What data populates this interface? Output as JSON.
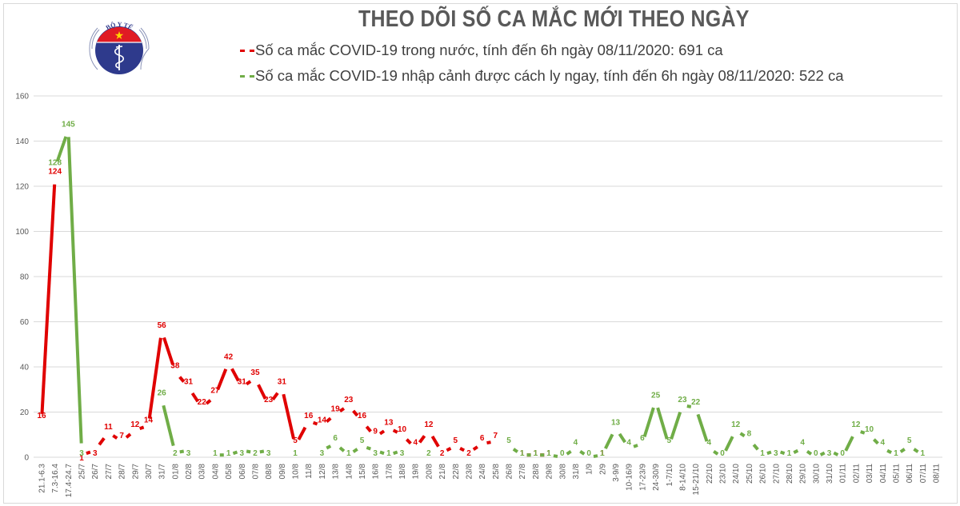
{
  "header": {
    "title": "THEO DÕI SỐ CA MẮC MỚI THEO NGÀY",
    "logo": {
      "top_text": "BỘ Y TẾ",
      "bottom_text": "MINISTRY OF HEALTH"
    }
  },
  "legend": [
    {
      "label": "Số ca mắc COVID-19 trong nước, tính đến 6h ngày 08/11/2020: 691 ca",
      "color": "#e00000"
    },
    {
      "label": "Số ca mắc COVID-19 nhập cảnh được cách ly ngay, tính đến 6h ngày 08/11/2020: 522 ca",
      "color": "#70ad47"
    }
  ],
  "colors": {
    "domestic": "#e00000",
    "imported": "#70ad47",
    "grid": "#d9d9d9",
    "axis_text": "#595959"
  },
  "chart_data": {
    "type": "line",
    "title": "THEO DÕI SỐ CA MẮC MỚI THEO NGÀY",
    "xlabel": "",
    "ylabel": "",
    "ylim": [
      0,
      160
    ],
    "yticks": [
      0,
      20,
      40,
      60,
      80,
      100,
      120,
      140,
      160
    ],
    "grid": true,
    "legend_position": "top",
    "categories": [
      "21.1-6.3",
      "7.3-16.4",
      "17.4-24.7",
      "25/7",
      "26/7",
      "27/7",
      "28/7",
      "29/7",
      "30/7",
      "31/7",
      "01/8",
      "02/8",
      "03/8",
      "04/8",
      "05/8",
      "06/8",
      "07/8",
      "08/8",
      "09/8",
      "10/8",
      "11/8",
      "12/8",
      "13/8",
      "14/8",
      "15/8",
      "16/8",
      "17/8",
      "18/8",
      "19/8",
      "20/8",
      "21/8",
      "22/8",
      "23/8",
      "24/8",
      "25/8",
      "26/8",
      "27/8",
      "28/8",
      "29/8",
      "30/8",
      "31/8",
      "1/9",
      "2/9",
      "3-9/9",
      "10-16/9",
      "17-23/9",
      "24-30/9",
      "1-7/10",
      "8-14/10",
      "15-21/10",
      "22/10",
      "23/10",
      "24/10",
      "25/10",
      "26/10",
      "27/10",
      "28/10",
      "29/10",
      "30/10",
      "31/10",
      "01/11",
      "02/11",
      "03/11",
      "04/11",
      "05/11",
      "06/11",
      "07/11",
      "08/11"
    ],
    "series": [
      {
        "name": "Số ca mắc COVID-19 trong nước",
        "color": "#e00000",
        "values": [
          16,
          124,
          null,
          1,
          3,
          11,
          7,
          12,
          14,
          56,
          38,
          31,
          22,
          27,
          42,
          31,
          35,
          23,
          31,
          5,
          16,
          14,
          19,
          23,
          16,
          9,
          13,
          10,
          4,
          12,
          2,
          5,
          2,
          6,
          7,
          null,
          1,
          1,
          1,
          null,
          null,
          null,
          1,
          null,
          null,
          null,
          null,
          null,
          null,
          null,
          null,
          null,
          null,
          null,
          null,
          null,
          null,
          null,
          null,
          null,
          null,
          null,
          null,
          null,
          null,
          null,
          null,
          null
        ]
      },
      {
        "name": "Số ca mắc COVID-19 nhập cảnh được cách ly ngay",
        "color": "#70ad47",
        "values": [
          null,
          128,
          145,
          3,
          null,
          null,
          null,
          null,
          null,
          26,
          2,
          3,
          null,
          1,
          1,
          3,
          2,
          3,
          null,
          1,
          null,
          3,
          6,
          1,
          5,
          3,
          1,
          3,
          null,
          2,
          null,
          null,
          null,
          null,
          null,
          5,
          1,
          1,
          1,
          0,
          4,
          0,
          1,
          13,
          4,
          6,
          25,
          5,
          23,
          22,
          4,
          0,
          12,
          8,
          1,
          3,
          1,
          4,
          0,
          3,
          0,
          12,
          10,
          4,
          1,
          5,
          1,
          null
        ]
      }
    ]
  }
}
